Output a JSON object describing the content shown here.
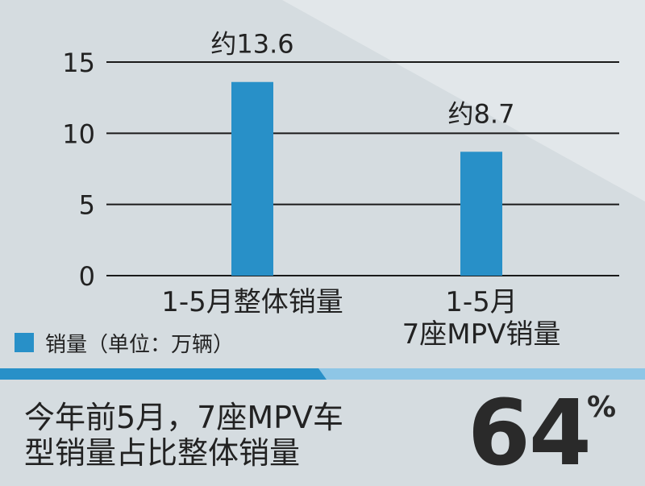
{
  "colors": {
    "bar": "#2890c8",
    "background": "#d5dce0",
    "background_light": "#e4e9ec",
    "stripe_dark": "#2890c8",
    "stripe_light": "#8ec6e6"
  },
  "chart_data": {
    "type": "bar",
    "categories": [
      "1-5月整体销量",
      "1-5月\n7座MPV销量"
    ],
    "values": [
      13.6,
      8.7
    ],
    "value_labels": [
      "约13.6",
      "约8.7"
    ],
    "ylim": [
      0,
      15
    ],
    "yticks": [
      0,
      5,
      10,
      15
    ],
    "grid": true,
    "legend": {
      "label": "销量（单位：万辆）",
      "placement": "bottom-left"
    }
  },
  "footer": {
    "summary_lines": [
      "今年前5月，7座MPV车",
      "型销量占比整体销量"
    ],
    "big_number": "64",
    "percent_sign": "%"
  }
}
